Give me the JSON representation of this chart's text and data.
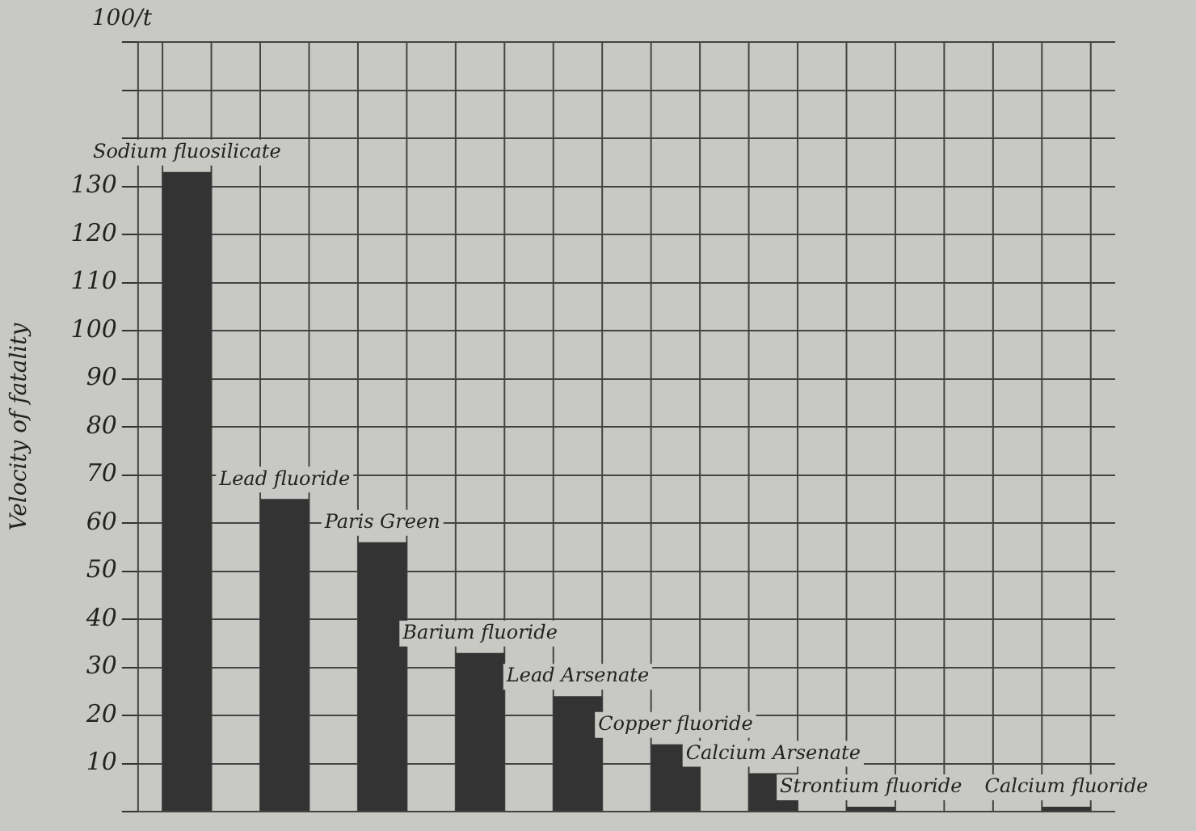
{
  "chart_data": {
    "type": "bar",
    "ylabel": "Velocity of fatality",
    "annotations": [
      "100/t"
    ],
    "categories": [
      "Sodium fluosilicate",
      "Lead fluoride",
      "Paris Green",
      "Barium fluoride",
      "Lead Arsenate",
      "Copper fluoride",
      "Calcium Arsenate",
      "Strontium fluoride",
      null,
      "Calcium fluoride"
    ],
    "values": [
      133,
      65,
      56,
      33,
      24,
      14,
      8,
      1,
      null,
      1
    ],
    "color": "#333333",
    "ylim": [
      0,
      160
    ],
    "yticks": [
      {
        "value": 0,
        "label": null
      },
      10,
      20,
      30,
      40,
      50,
      60,
      70,
      80,
      90,
      100,
      110,
      120,
      130,
      {
        "value": 140,
        "label": null
      },
      {
        "value": 150,
        "label": null
      },
      {
        "value": 160,
        "label": null
      }
    ],
    "grid": true,
    "tick_labels": "y"
  }
}
